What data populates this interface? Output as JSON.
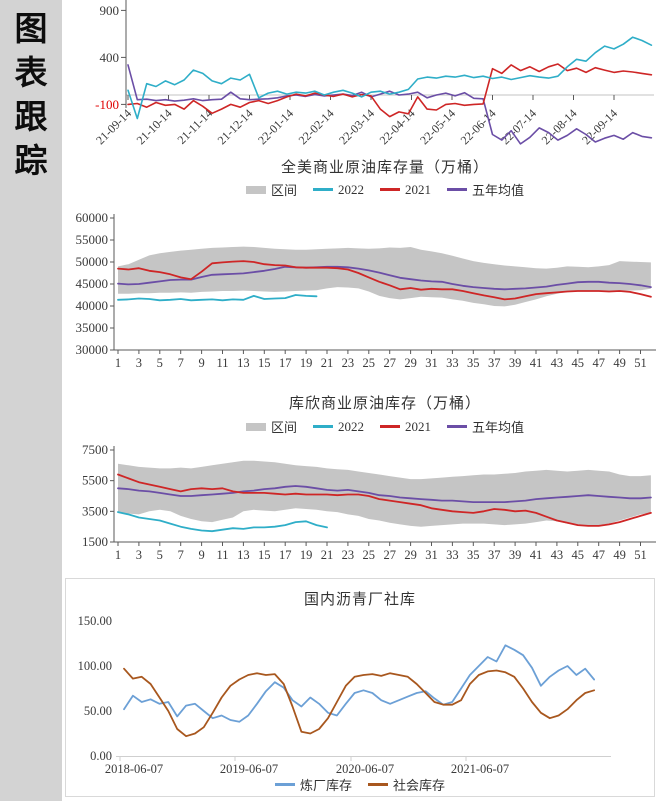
{
  "sidebar": {
    "title": "图表跟踪",
    "chars": [
      "图",
      "表",
      "跟",
      "踪"
    ]
  },
  "colors": {
    "cyan": "#2FAEC8",
    "red": "#CE2626",
    "purple": "#6B4EA6",
    "band": "#C5C5C5",
    "blue": "#6CA0D6",
    "brown": "#A8571E",
    "axis": "#595959",
    "grid": "#CFCFCF",
    "tick_red": "#E00000",
    "text": "#3A3A3A",
    "box_border": "#D9D9D9",
    "sidebar_bg": "#D3D3D3"
  },
  "chart_data": [
    {
      "type": "line",
      "title": "",
      "ytick_labels": [
        "900",
        "400",
        "-100"
      ],
      "ytick_values": [
        900,
        400,
        -100
      ],
      "ytick_colors": [
        "text",
        "text",
        "tick_red"
      ],
      "xticks": [
        "21-09-14",
        "21-10-14",
        "21-11-14",
        "21-12-14",
        "22-01-14",
        "22-02-14",
        "22-03-14",
        "22-04-14",
        "22-05-14",
        "22-06-14",
        "22-07-14",
        "22-08-14",
        "22-09-14"
      ],
      "series": [
        {
          "name": "purple-line",
          "color": "purple",
          "values": [
            320,
            -50,
            -45,
            -60,
            -50,
            -65,
            -55,
            -40,
            -60,
            -50,
            -45,
            30,
            -40,
            -50,
            -45,
            -40,
            -30,
            -10,
            0,
            -15,
            5,
            -10,
            0,
            10,
            -5,
            30,
            -20,
            10,
            40,
            0,
            10,
            30,
            -30,
            0,
            20,
            -10,
            25,
            -35,
            -40,
            -420,
            -480,
            -380,
            -520,
            -450,
            -350,
            -400,
            -480,
            -430,
            -360,
            -420,
            -500,
            -460,
            -430,
            -470,
            -400,
            -440,
            -455
          ]
        },
        {
          "name": "red-line",
          "color": "red",
          "values": [
            -100,
            -90,
            -130,
            -80,
            -110,
            -100,
            -150,
            -60,
            -120,
            -195,
            -150,
            -100,
            -130,
            -80,
            -60,
            -90,
            -60,
            -20,
            10,
            -10,
            20,
            0,
            -15,
            10,
            -20,
            5,
            -10,
            -150,
            -230,
            -180,
            -200,
            -20,
            -150,
            -160,
            -100,
            -90,
            -110,
            -100,
            -95,
            280,
            230,
            320,
            260,
            300,
            250,
            300,
            330,
            260,
            285,
            240,
            290,
            265,
            240,
            255,
            245,
            230,
            215
          ]
        },
        {
          "name": "cyan-line",
          "color": "cyan",
          "values": [
            50,
            -250,
            120,
            90,
            150,
            110,
            160,
            265,
            230,
            150,
            120,
            180,
            160,
            220,
            -30,
            20,
            40,
            10,
            30,
            20,
            40,
            0,
            30,
            50,
            20,
            -20,
            30,
            40,
            10,
            30,
            60,
            170,
            190,
            180,
            200,
            190,
            210,
            185,
            200,
            175,
            190,
            165,
            185,
            205,
            190,
            180,
            200,
            300,
            380,
            360,
            450,
            520,
            490,
            540,
            615,
            580,
            530
          ]
        }
      ]
    },
    {
      "type": "line+band",
      "title": "全美商业原油库存量（万桶）",
      "legend": [
        "区间",
        "2022",
        "2021",
        "五年均值"
      ],
      "ylim": [
        30000,
        60000
      ],
      "ytick_labels": [
        "60000",
        "55000",
        "50000",
        "45000",
        "40000",
        "35000",
        "30000"
      ],
      "xticks": [
        1,
        3,
        5,
        7,
        9,
        11,
        13,
        15,
        17,
        19,
        21,
        23,
        25,
        27,
        29,
        31,
        33,
        35,
        37,
        39,
        41,
        43,
        45,
        47,
        49,
        51
      ],
      "band": {
        "high": [
          49000,
          49500,
          50500,
          51500,
          52000,
          52300,
          52600,
          52800,
          53000,
          53200,
          53300,
          53400,
          53500,
          53400,
          53200,
          53000,
          52900,
          52800,
          52800,
          52900,
          53000,
          53100,
          53200,
          53100,
          53000,
          53100,
          53300,
          53200,
          53400,
          52800,
          52400,
          52000,
          51400,
          50800,
          50200,
          49800,
          49500,
          49200,
          49000,
          48800,
          48600,
          48500,
          48700,
          49000,
          48900,
          48800,
          49000,
          49300,
          50200,
          50100,
          50000,
          49900
        ],
        "low": [
          42800,
          42800,
          42900,
          42900,
          43000,
          43000,
          43100,
          43000,
          43200,
          43300,
          43400,
          43400,
          43500,
          43400,
          43300,
          43200,
          43300,
          43400,
          43500,
          43600,
          44000,
          44300,
          44200,
          44000,
          43300,
          42300,
          41800,
          41500,
          41800,
          42100,
          42000,
          41900,
          41500,
          41200,
          40700,
          40400,
          40000,
          39900,
          40300,
          40900,
          41500,
          42200,
          42800,
          43200,
          43300,
          43400,
          43400,
          43300,
          43400,
          43500,
          43600,
          43900
        ]
      },
      "series": [
        {
          "name": "五年均值",
          "color": "purple",
          "values": [
            45100,
            44900,
            45000,
            45300,
            45600,
            45900,
            46000,
            46000,
            46600,
            47100,
            47200,
            47300,
            47400,
            47700,
            48000,
            48400,
            48900,
            48800,
            48700,
            48800,
            48900,
            48900,
            48800,
            48500,
            48100,
            47600,
            47000,
            46400,
            46100,
            45800,
            45600,
            45500,
            45000,
            44600,
            44300,
            44100,
            43900,
            43800,
            43900,
            44000,
            44200,
            44400,
            44800,
            45100,
            45400,
            45500,
            45500,
            45300,
            45200,
            45000,
            44700,
            44300
          ]
        },
        {
          "name": "2021",
          "color": "red",
          "values": [
            48500,
            48300,
            48600,
            48000,
            47700,
            47200,
            46500,
            46100,
            47800,
            49700,
            49900,
            50100,
            50200,
            50000,
            49500,
            49300,
            49200,
            48800,
            48700,
            48700,
            48700,
            48600,
            48300,
            47500,
            46500,
            45500,
            44700,
            43800,
            44100,
            43700,
            43900,
            43800,
            43800,
            43400,
            42900,
            42400,
            42000,
            41500,
            41700,
            42200,
            42700,
            42900,
            43100,
            43300,
            43400,
            43400,
            43400,
            43300,
            43400,
            43200,
            42700,
            42100
          ]
        },
        {
          "name": "2022",
          "color": "cyan",
          "values": [
            41400,
            41500,
            41700,
            41600,
            41300,
            41400,
            41600,
            41300,
            41400,
            41500,
            41300,
            41500,
            41400,
            42300,
            41600,
            41700,
            41800,
            42500,
            42300,
            42200
          ]
        }
      ]
    },
    {
      "type": "line+band",
      "title": "库欣商业原油库存（万桶）",
      "legend": [
        "区间",
        "2022",
        "2021",
        "五年均值"
      ],
      "ylim": [
        1500,
        7500
      ],
      "ytick_labels": [
        "7500",
        "5500",
        "3500",
        "1500"
      ],
      "xticks": [
        1,
        3,
        5,
        7,
        9,
        11,
        13,
        15,
        17,
        19,
        21,
        23,
        25,
        27,
        29,
        31,
        33,
        35,
        37,
        39,
        41,
        43,
        45,
        47,
        49,
        51
      ],
      "band": {
        "high": [
          6600,
          6500,
          6400,
          6350,
          6300,
          6300,
          6350,
          6300,
          6400,
          6500,
          6600,
          6700,
          6800,
          6800,
          6750,
          6700,
          6600,
          6500,
          6450,
          6400,
          6300,
          6250,
          6200,
          6100,
          6000,
          5900,
          5800,
          5700,
          5600,
          5600,
          5650,
          5700,
          5750,
          5800,
          5850,
          5900,
          5900,
          5950,
          6000,
          6100,
          6150,
          6200,
          6150,
          6100,
          6150,
          6200,
          6150,
          6100,
          5900,
          5800,
          5800,
          5850
        ],
        "low": [
          3400,
          3350,
          3300,
          3500,
          3600,
          3500,
          3200,
          3000,
          2850,
          2800,
          2950,
          3100,
          3500,
          3600,
          3550,
          3500,
          3600,
          3700,
          3650,
          3600,
          3500,
          3450,
          3300,
          3200,
          3000,
          2900,
          2750,
          2650,
          2550,
          2500,
          2550,
          2600,
          2650,
          2700,
          2700,
          2700,
          2650,
          2600,
          2650,
          2700,
          2800,
          2900,
          2850,
          2700,
          2600,
          2550,
          2600,
          2700,
          2900,
          3100,
          3300,
          3400
        ]
      },
      "series": [
        {
          "name": "五年均值",
          "color": "purple",
          "values": [
            5000,
            4950,
            4850,
            4800,
            4700,
            4600,
            4500,
            4500,
            4550,
            4600,
            4650,
            4700,
            4800,
            4850,
            4950,
            5000,
            5100,
            5150,
            5100,
            5000,
            4900,
            4850,
            4900,
            4800,
            4700,
            4550,
            4500,
            4400,
            4350,
            4300,
            4250,
            4200,
            4200,
            4150,
            4100,
            4100,
            4100,
            4100,
            4150,
            4200,
            4300,
            4350,
            4400,
            4450,
            4500,
            4550,
            4500,
            4450,
            4400,
            4350,
            4350,
            4400
          ]
        },
        {
          "name": "2021",
          "color": "red",
          "values": [
            5900,
            5650,
            5400,
            5250,
            5100,
            4950,
            4800,
            4950,
            5000,
            4950,
            5000,
            4800,
            4700,
            4700,
            4700,
            4650,
            4600,
            4650,
            4600,
            4600,
            4600,
            4550,
            4600,
            4600,
            4500,
            4300,
            4200,
            4100,
            4000,
            3900,
            3700,
            3600,
            3500,
            3450,
            3400,
            3500,
            3650,
            3600,
            3500,
            3550,
            3400,
            3150,
            2900,
            2750,
            2600,
            2550,
            2550,
            2650,
            2800,
            3000,
            3200,
            3400
          ]
        },
        {
          "name": "2022",
          "color": "cyan",
          "values": [
            3450,
            3300,
            3100,
            3000,
            2900,
            2700,
            2500,
            2350,
            2250,
            2200,
            2300,
            2400,
            2350,
            2450,
            2450,
            2500,
            2600,
            2800,
            2850,
            2600,
            2450
          ]
        }
      ]
    },
    {
      "type": "line",
      "title": "国内沥青厂社库",
      "legend": [
        "炼厂库存",
        "社会库存"
      ],
      "ylim": [
        0,
        150
      ],
      "ytick_labels": [
        "150.00",
        "100.00",
        "50.00",
        "0.00"
      ],
      "xticks": [
        "2018-06-07",
        "2019-06-07",
        "2020-06-07",
        "2021-06-07"
      ],
      "series": [
        {
          "name": "炼厂库存",
          "color": "blue",
          "values": [
            52,
            67,
            60,
            63,
            58,
            60,
            44,
            56,
            58,
            50,
            42,
            45,
            40,
            38,
            45,
            58,
            72,
            82,
            76,
            62,
            55,
            65,
            58,
            48,
            45,
            58,
            70,
            73,
            70,
            62,
            58,
            62,
            66,
            70,
            72,
            64,
            57,
            60,
            75,
            90,
            100,
            110,
            105,
            123,
            118,
            112,
            98,
            78,
            88,
            95,
            100,
            90,
            97,
            85
          ]
        },
        {
          "name": "社会库存",
          "color": "brown",
          "values": [
            97,
            86,
            88,
            80,
            65,
            50,
            30,
            22,
            25,
            32,
            48,
            65,
            78,
            85,
            90,
            92,
            90,
            91,
            80,
            55,
            27,
            25,
            30,
            42,
            60,
            78,
            88,
            90,
            91,
            89,
            92,
            90,
            88,
            80,
            70,
            60,
            57,
            57,
            62,
            80,
            90,
            94,
            95,
            93,
            88,
            75,
            60,
            48,
            42,
            45,
            52,
            62,
            70,
            73
          ]
        }
      ]
    }
  ]
}
